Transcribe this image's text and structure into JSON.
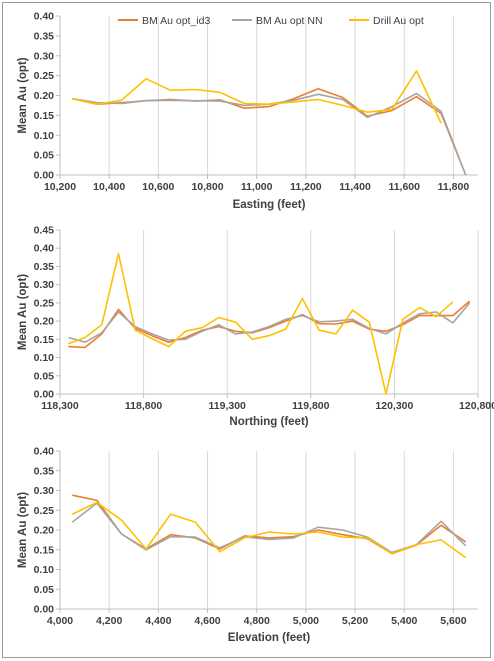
{
  "colors": {
    "bm_id3": "#ED7D31",
    "bm_nn": "#A5A5A5",
    "drill": "#FFC000",
    "grid": "#d9d9d9",
    "axis": "#bfbfbf",
    "text": "#404040"
  },
  "legend": [
    "BM Au opt_id3",
    "BM Au opt NN",
    "Drill Au opt"
  ],
  "chart_data": [
    {
      "type": "line",
      "xlabel": "Easting (feet)",
      "ylabel": "Mean Au (opt)",
      "xlim": [
        10200,
        11900
      ],
      "ylim": [
        0,
        0.4
      ],
      "xticks": [
        10200,
        10400,
        10600,
        10800,
        11000,
        11200,
        11400,
        11600,
        11800
      ],
      "xtick_labels": [
        "10,200",
        "10,400",
        "10,600",
        "10,800",
        "11,000",
        "11,200",
        "11,400",
        "11,600",
        "11,800"
      ],
      "yticks": [
        0,
        0.05,
        0.1,
        0.15,
        0.2,
        0.25,
        0.3,
        0.35,
        0.4
      ],
      "ytick_labels": [
        "0.00",
        "0.05",
        "0.10",
        "0.15",
        "0.20",
        "0.25",
        "0.30",
        "0.35",
        "0.40"
      ],
      "legend_position": "top",
      "grid": "vertical",
      "series": [
        {
          "name": "BM Au opt_id3",
          "x": [
            10250,
            10350,
            10450,
            10550,
            10650,
            10750,
            10850,
            10950,
            11050,
            11150,
            11250,
            11350,
            11450,
            11550,
            11650,
            11750,
            11850
          ],
          "y": [
            0.192,
            0.178,
            0.182,
            0.187,
            0.19,
            0.186,
            0.189,
            0.168,
            0.172,
            0.192,
            0.217,
            0.195,
            0.148,
            0.162,
            0.197,
            0.155,
            0.0
          ]
        },
        {
          "name": "BM Au opt NN",
          "x": [
            10250,
            10350,
            10450,
            10550,
            10650,
            10750,
            10850,
            10950,
            11050,
            11150,
            11250,
            11350,
            11450,
            11550,
            11650,
            11750,
            11850
          ],
          "y": [
            0.192,
            0.182,
            0.18,
            0.187,
            0.188,
            0.187,
            0.186,
            0.175,
            0.178,
            0.188,
            0.203,
            0.19,
            0.145,
            0.172,
            0.205,
            0.16,
            0.0
          ]
        },
        {
          "name": "Drill Au opt",
          "x": [
            10250,
            10350,
            10450,
            10550,
            10650,
            10750,
            10850,
            10950,
            11050,
            11150,
            11250,
            11350,
            11450,
            11550,
            11650,
            11750
          ],
          "y": [
            0.192,
            0.178,
            0.188,
            0.242,
            0.213,
            0.215,
            0.208,
            0.18,
            0.178,
            0.184,
            0.19,
            0.175,
            0.158,
            0.165,
            0.262,
            0.13
          ]
        }
      ]
    },
    {
      "type": "line",
      "xlabel": "Northing (feet)",
      "ylabel": "Mean Au (opt)",
      "xlim": [
        118300,
        120800
      ],
      "ylim": [
        0,
        0.45
      ],
      "xticks": [
        118300,
        118800,
        119300,
        119800,
        120300,
        120800
      ],
      "xtick_labels": [
        "118,300",
        "118,800",
        "119,300",
        "119,800",
        "120,300",
        "120,800"
      ],
      "yticks": [
        0,
        0.05,
        0.1,
        0.15,
        0.2,
        0.25,
        0.3,
        0.35,
        0.4,
        0.45
      ],
      "ytick_labels": [
        "0.00",
        "0.05",
        "0.10",
        "0.15",
        "0.20",
        "0.25",
        "0.30",
        "0.35",
        "0.40",
        "0.45"
      ],
      "grid": "vertical",
      "series": [
        {
          "name": "BM Au opt_id3",
          "x": [
            118350,
            118450,
            118550,
            118650,
            118750,
            118850,
            118950,
            119050,
            119150,
            119250,
            119350,
            119450,
            119550,
            119650,
            119750,
            119850,
            119950,
            120050,
            120150,
            120250,
            120350,
            120450,
            120550,
            120650,
            120750
          ],
          "y": [
            0.13,
            0.128,
            0.165,
            0.232,
            0.18,
            0.16,
            0.142,
            0.155,
            0.175,
            0.185,
            0.172,
            0.168,
            0.182,
            0.2,
            0.218,
            0.193,
            0.192,
            0.2,
            0.178,
            0.172,
            0.19,
            0.215,
            0.215,
            0.215,
            0.255
          ]
        },
        {
          "name": "BM Au opt NN",
          "x": [
            118350,
            118450,
            118550,
            118650,
            118750,
            118850,
            118950,
            119050,
            119150,
            119250,
            119350,
            119450,
            119550,
            119650,
            119750,
            119850,
            119950,
            120050,
            120150,
            120250,
            120350,
            120450,
            120550,
            120650,
            120750
          ],
          "y": [
            0.155,
            0.142,
            0.168,
            0.225,
            0.185,
            0.165,
            0.148,
            0.15,
            0.172,
            0.19,
            0.165,
            0.17,
            0.185,
            0.205,
            0.215,
            0.198,
            0.2,
            0.205,
            0.18,
            0.165,
            0.195,
            0.22,
            0.225,
            0.195,
            0.25
          ]
        },
        {
          "name": "Drill Au opt",
          "x": [
            118350,
            118450,
            118550,
            118650,
            118750,
            118850,
            118950,
            119050,
            119150,
            119250,
            119350,
            119450,
            119550,
            119650,
            119750,
            119850,
            119950,
            120050,
            120150,
            120250,
            120350,
            120450,
            120550,
            120650
          ],
          "y": [
            0.138,
            0.155,
            0.19,
            0.385,
            0.175,
            0.152,
            0.13,
            0.172,
            0.182,
            0.21,
            0.197,
            0.15,
            0.16,
            0.178,
            0.262,
            0.175,
            0.165,
            0.23,
            0.197,
            0.0,
            0.205,
            0.237,
            0.212,
            0.253
          ]
        }
      ]
    },
    {
      "type": "line",
      "xlabel": "Elevation (feet)",
      "ylabel": "Mean Au (opt)",
      "xlim": [
        4000,
        5700
      ],
      "ylim": [
        0,
        0.4
      ],
      "xticks": [
        4000,
        4200,
        4400,
        4600,
        4800,
        5000,
        5200,
        5400,
        5600
      ],
      "xtick_labels": [
        "4,000",
        "4,200",
        "4,400",
        "4,600",
        "4,800",
        "5,000",
        "5,200",
        "5,400",
        "5,600"
      ],
      "yticks": [
        0,
        0.05,
        0.1,
        0.15,
        0.2,
        0.25,
        0.3,
        0.35,
        0.4
      ],
      "ytick_labels": [
        "0.00",
        "0.05",
        "0.10",
        "0.15",
        "0.20",
        "0.25",
        "0.30",
        "0.35",
        "0.40"
      ],
      "grid": "vertical",
      "series": [
        {
          "name": "BM Au opt_id3",
          "x": [
            4050,
            4150,
            4250,
            4350,
            4450,
            4550,
            4650,
            4750,
            4850,
            4950,
            5050,
            5150,
            5250,
            5350,
            5450,
            5550,
            5650
          ],
          "y": [
            0.288,
            0.275,
            0.19,
            0.152,
            0.188,
            0.18,
            0.152,
            0.185,
            0.18,
            0.183,
            0.2,
            0.188,
            0.178,
            0.14,
            0.162,
            0.212,
            0.17
          ]
        },
        {
          "name": "BM Au opt NN",
          "x": [
            4050,
            4150,
            4250,
            4350,
            4450,
            4550,
            4650,
            4750,
            4850,
            4950,
            5050,
            5150,
            5250,
            5350,
            5450,
            5550,
            5650
          ],
          "y": [
            0.22,
            0.268,
            0.19,
            0.15,
            0.183,
            0.182,
            0.155,
            0.183,
            0.176,
            0.18,
            0.207,
            0.2,
            0.182,
            0.143,
            0.163,
            0.222,
            0.16
          ]
        },
        {
          "name": "Drill Au opt",
          "x": [
            4050,
            4150,
            4250,
            4350,
            4450,
            4550,
            4650,
            4750,
            4850,
            4950,
            5050,
            5150,
            5250,
            5350,
            5450,
            5550,
            5650
          ],
          "y": [
            0.24,
            0.27,
            0.225,
            0.152,
            0.24,
            0.22,
            0.145,
            0.18,
            0.195,
            0.19,
            0.195,
            0.182,
            0.18,
            0.14,
            0.163,
            0.175,
            0.13
          ]
        }
      ]
    }
  ]
}
